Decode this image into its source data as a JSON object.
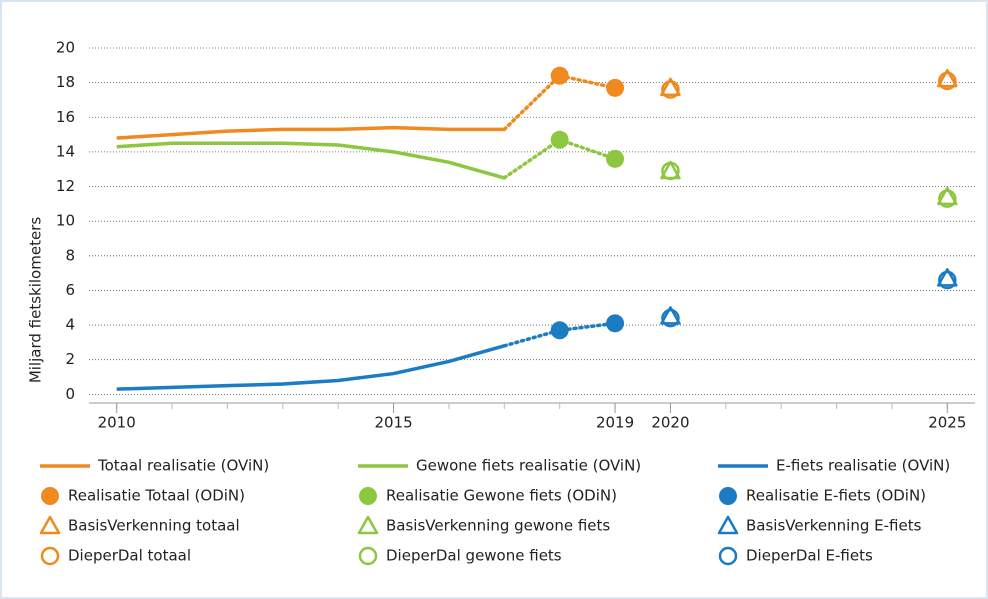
{
  "chart_data": {
    "type": "line",
    "ylabel": "Miljard fietskilometers",
    "xlim": [
      2009.5,
      2025.5
    ],
    "ylim": [
      -0.5,
      20
    ],
    "xticks": [
      2010,
      2015,
      2019,
      2020,
      2025
    ],
    "xminorticks": [
      2010,
      2011,
      2012,
      2013,
      2014,
      2015,
      2016,
      2017,
      2018,
      2019,
      2020,
      2021,
      2022,
      2023,
      2024,
      2025
    ],
    "yticks": [
      0,
      2,
      4,
      6,
      8,
      10,
      12,
      14,
      16,
      18,
      20
    ],
    "grid": true,
    "series": [
      {
        "name": "Totaal realisatie (OViN)",
        "color": "#f0891e",
        "marker": "line",
        "x": [
          2010,
          2011,
          2012,
          2013,
          2014,
          2015,
          2016,
          2017
        ],
        "values": [
          14.8,
          15.0,
          15.2,
          15.3,
          15.3,
          15.4,
          15.3,
          15.3
        ]
      },
      {
        "name": "Gewone fiets realisatie (OViN)",
        "color": "#8dc63f",
        "marker": "line",
        "x": [
          2010,
          2011,
          2012,
          2013,
          2014,
          2015,
          2016,
          2017
        ],
        "values": [
          14.3,
          14.5,
          14.5,
          14.5,
          14.4,
          14.0,
          13.4,
          12.5
        ]
      },
      {
        "name": "E-fiets realisatie (OViN)",
        "color": "#1b7bc3",
        "marker": "line",
        "x": [
          2010,
          2011,
          2012,
          2013,
          2014,
          2015,
          2016,
          2017
        ],
        "values": [
          0.3,
          0.4,
          0.5,
          0.6,
          0.8,
          1.2,
          1.9,
          2.8
        ]
      },
      {
        "name": "Realisatie Totaal (ODiN)",
        "color": "#f0891e",
        "marker": "dot",
        "connect": 0,
        "x": [
          2018,
          2019
        ],
        "values": [
          18.4,
          17.7
        ]
      },
      {
        "name": "Realisatie Gewone fiets (ODiN)",
        "color": "#8dc63f",
        "marker": "dot",
        "connect": 1,
        "x": [
          2018,
          2019
        ],
        "values": [
          14.7,
          13.6
        ]
      },
      {
        "name": "Realisatie E-fiets (ODiN)",
        "color": "#1b7bc3",
        "marker": "dot",
        "connect": 2,
        "x": [
          2018,
          2019
        ],
        "values": [
          3.7,
          4.1
        ]
      },
      {
        "name": "BasisVerkenning totaal",
        "color": "#f0891e",
        "marker": "triangle",
        "x": [
          2020,
          2025
        ],
        "values": [
          17.7,
          18.2
        ]
      },
      {
        "name": "BasisVerkenning gewone fiets",
        "color": "#8dc63f",
        "marker": "triangle",
        "x": [
          2020,
          2025
        ],
        "values": [
          12.9,
          11.4
        ]
      },
      {
        "name": "BasisVerkenning E-fiets",
        "color": "#1b7bc3",
        "marker": "triangle",
        "x": [
          2020,
          2025
        ],
        "values": [
          4.5,
          6.7
        ]
      },
      {
        "name": "DieperDal totaal",
        "color": "#f0891e",
        "marker": "ring",
        "x": [
          2020,
          2025
        ],
        "values": [
          17.6,
          18.1
        ]
      },
      {
        "name": "DieperDal gewone fiets",
        "color": "#8dc63f",
        "marker": "ring",
        "x": [
          2020,
          2025
        ],
        "values": [
          12.9,
          11.3
        ]
      },
      {
        "name": "DieperDal E-fiets",
        "color": "#1b7bc3",
        "marker": "ring",
        "x": [
          2020,
          2025
        ],
        "values": [
          4.4,
          6.6
        ]
      }
    ]
  }
}
